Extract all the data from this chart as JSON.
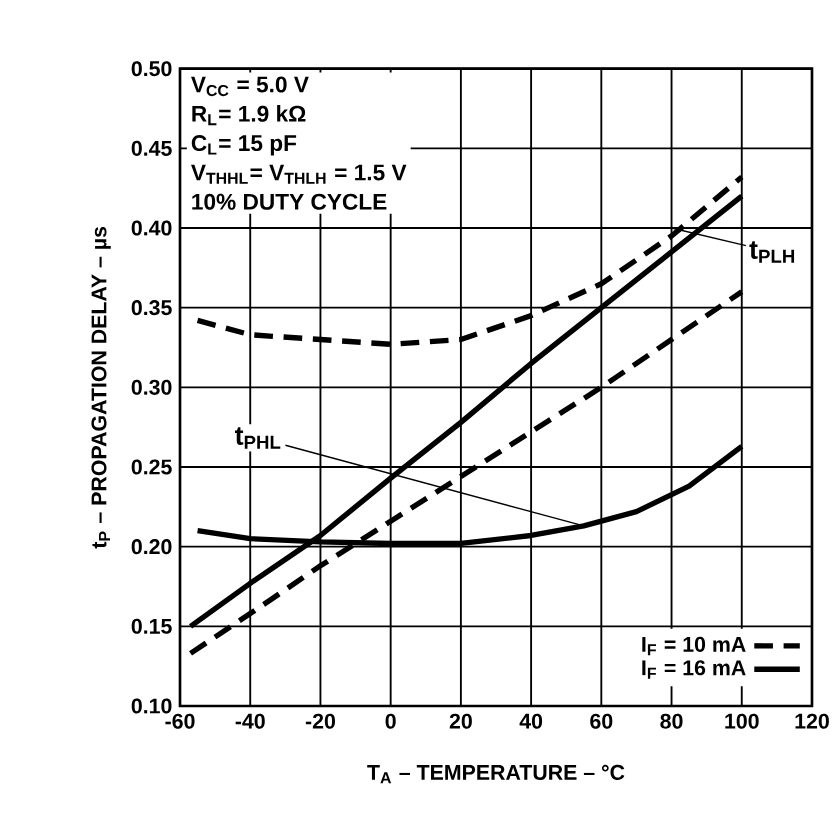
{
  "chart_data": {
    "type": "line",
    "xlabel": "T$_{A}$ – TEMPERATURE – °C",
    "ylabel": "t$_{P}$ – PROPAGATION DELAY – µs",
    "xlim": [
      -60,
      120
    ],
    "xticks": [
      -60,
      -40,
      -20,
      0,
      20,
      40,
      60,
      80,
      100,
      120
    ],
    "ylim": [
      0.1,
      0.5
    ],
    "yticks": [
      {
        "value": 0.1,
        "label": "0.10"
      },
      {
        "value": 0.15,
        "label": "0.15"
      },
      {
        "value": 0.2,
        "label": "0.20"
      },
      {
        "value": 0.25,
        "label": "0.25"
      },
      {
        "value": 0.3,
        "label": "0.30"
      },
      {
        "value": 0.35,
        "label": "0.35"
      },
      {
        "value": 0.4,
        "label": "0.40"
      },
      {
        "value": 0.45,
        "label": "0.45"
      },
      {
        "value": 0.5,
        "label": "0.50"
      }
    ],
    "grid": true,
    "legend": "bottom right",
    "marker": "none",
    "series": [
      {
        "name": "I$_{F}$ = 10 mA",
        "color": "#000000",
        "line_style": "dashed",
        "x": [
          -57,
          -40,
          -20,
          0,
          20,
          40,
          60,
          80,
          100
        ],
        "values": [
          0.133,
          0.158,
          0.188,
          0.216,
          0.244,
          0.272,
          0.3,
          0.33,
          0.36
        ]
      },
      {
        "name": "I$_{F}$ = 16 mA",
        "color": "#000000",
        "line_style": "solid",
        "x": [
          -57,
          -40,
          -20,
          0,
          20,
          40,
          60,
          80,
          100
        ],
        "values": [
          0.15,
          0.177,
          0.207,
          0.243,
          0.278,
          0.315,
          0.35,
          0.385,
          0.42
        ]
      },
      {
        "color": "#000000",
        "line_style": "dashed",
        "x": [
          -55,
          -40,
          -20,
          0,
          20,
          40,
          60,
          80,
          100
        ],
        "values": [
          0.342,
          0.333,
          0.33,
          0.327,
          0.33,
          0.345,
          0.365,
          0.395,
          0.432
        ]
      },
      {
        "color": "#000000",
        "line_style": "solid",
        "x": [
          -55,
          -40,
          -20,
          0,
          20,
          40,
          55,
          70,
          85,
          100
        ],
        "values": [
          0.21,
          0.205,
          0.203,
          0.202,
          0.202,
          0.207,
          0.213,
          0.222,
          0.238,
          0.263
        ]
      }
    ],
    "annotations": [
      "V$_{CC}$ = 5.0 V",
      "R$_{L}$= 1.9 kΩ",
      "C$_{L}$= 15 pF",
      "V$_{THHL}$= V$_{THLH}$ = 1.5 V",
      "10% DUTY CYCLE",
      {
        "text": "t$_{PHL}$",
        "x": 55,
        "y": 0.213
      },
      {
        "text": "t$_{PLH}$",
        "x": 80,
        "y": 0.4
      }
    ]
  }
}
